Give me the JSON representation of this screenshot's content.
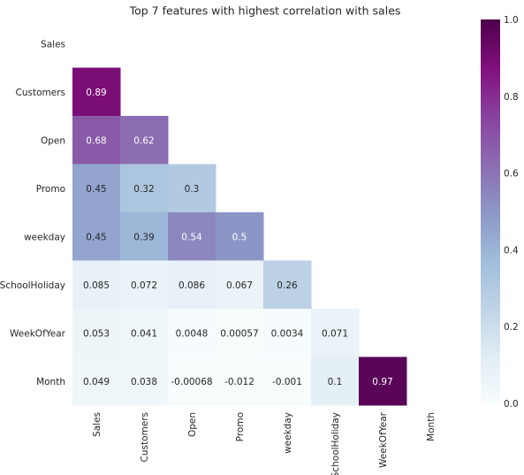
{
  "chart_data": {
    "type": "heatmap",
    "title": "Top 7 features with highest correlation with sales",
    "labels": [
      "Sales",
      "Customers",
      "Open",
      "Promo",
      "weekday",
      "SchoolHoliday",
      "WeekOfYear",
      "Month"
    ],
    "values": [
      [
        null,
        null,
        null,
        null,
        null,
        null,
        null,
        null
      ],
      [
        0.89,
        null,
        null,
        null,
        null,
        null,
        null,
        null
      ],
      [
        0.68,
        0.62,
        null,
        null,
        null,
        null,
        null,
        null
      ],
      [
        0.45,
        0.32,
        0.3,
        null,
        null,
        null,
        null,
        null
      ],
      [
        0.45,
        0.39,
        0.54,
        0.5,
        null,
        null,
        null,
        null
      ],
      [
        0.085,
        0.072,
        0.086,
        0.067,
        0.26,
        null,
        null,
        null
      ],
      [
        0.053,
        0.041,
        0.0048,
        0.00057,
        0.0034,
        0.071,
        null,
        null
      ],
      [
        0.049,
        0.038,
        -0.00068,
        -0.012,
        -0.001,
        0.1,
        0.97,
        null
      ]
    ],
    "cell_labels": [
      [
        null,
        null,
        null,
        null,
        null,
        null,
        null,
        null
      ],
      [
        "0.89",
        null,
        null,
        null,
        null,
        null,
        null,
        null
      ],
      [
        "0.68",
        "0.62",
        null,
        null,
        null,
        null,
        null,
        null
      ],
      [
        "0.45",
        "0.32",
        "0.3",
        null,
        null,
        null,
        null,
        null
      ],
      [
        "0.45",
        "0.39",
        "0.54",
        "0.5",
        null,
        null,
        null,
        null
      ],
      [
        "0.085",
        "0.072",
        "0.086",
        "0.067",
        "0.26",
        null,
        null,
        null
      ],
      [
        "0.053",
        "0.041",
        "0.0048",
        "0.00057",
        "0.0034",
        "0.071",
        null,
        null
      ],
      [
        "0.049",
        "0.038",
        "-0.00068",
        "-0.012",
        "-0.001",
        "0.1",
        "0.97",
        null
      ]
    ],
    "mask": "upper-triangle-including-diagonal",
    "colormap": "BuPu",
    "vmin": 0.0,
    "vmax": 1.0,
    "colorbar": {
      "ticks": [
        0.0,
        0.2,
        0.4,
        0.6,
        0.8,
        1.0
      ],
      "tick_labels": [
        "0.0",
        "0.2",
        "0.4",
        "0.6",
        "0.8",
        "1.0"
      ]
    },
    "grid": false,
    "colors": {
      "background": "#ffffff",
      "text": "#262626",
      "cell_text_dark": "#262626",
      "cell_text_light": "#ffffff"
    }
  }
}
